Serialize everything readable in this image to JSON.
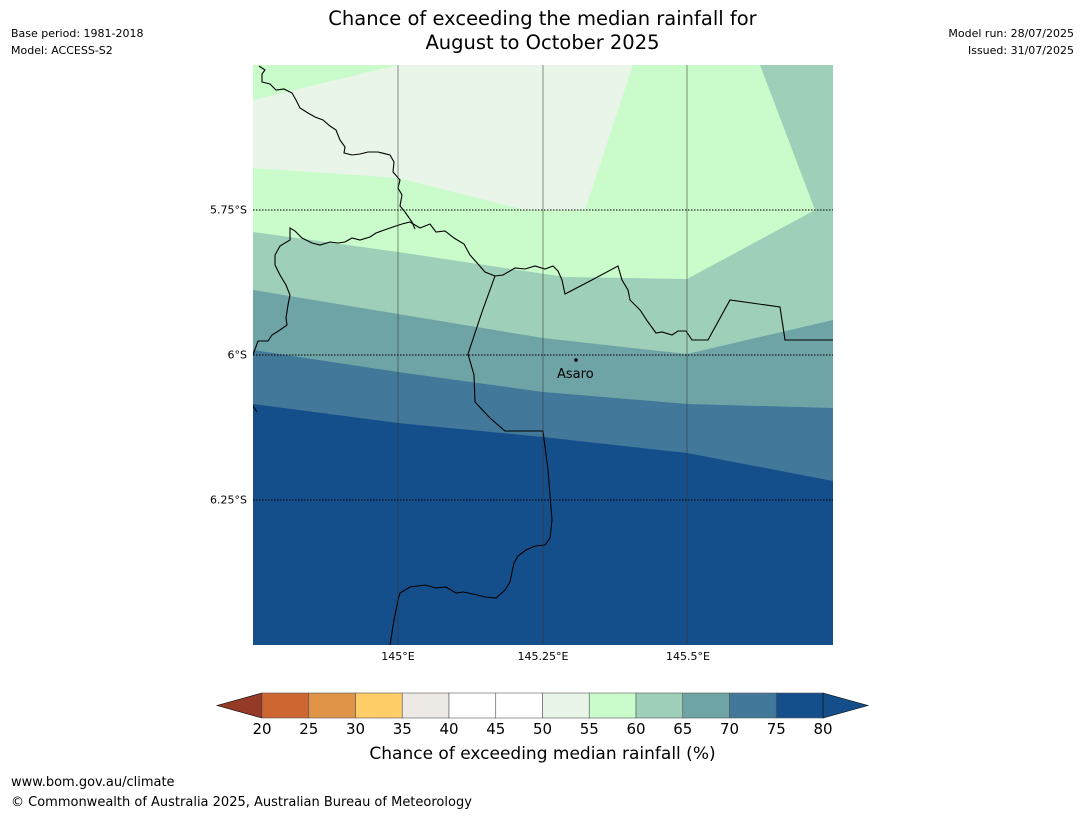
{
  "title": {
    "line1": "Chance of exceeding the median rainfall for",
    "line2": "August to October 2025"
  },
  "meta": {
    "base_period": "Base period: 1981-2018",
    "model": "Model: ACCESS-S2",
    "model_run": "Model run: 28/07/2025",
    "issued": "Issued: 31/07/2025"
  },
  "map": {
    "place_label": "Asaro",
    "lat_labels": [
      "5.75°S",
      "6°S",
      "6.25°S"
    ],
    "lon_labels": [
      "145°E",
      "145.25°E",
      "145.5°E"
    ]
  },
  "colorbar": {
    "title": "Chance of exceeding median rainfall (%)",
    "ticks": [
      "20",
      "25",
      "30",
      "35",
      "40",
      "45",
      "50",
      "55",
      "60",
      "65",
      "70",
      "75",
      "80"
    ],
    "colors": [
      "#b14a25",
      "#cd6631",
      "#e09447",
      "#fecd67",
      "#ede9e5",
      "#ffffff",
      "#ffffff",
      "#e8f5e8",
      "#c9fcca",
      "#9ecfb8",
      "#6fa4a7",
      "#427899",
      "#154f8b"
    ],
    "under_color": "#963a28",
    "over_color": "#154f8b"
  },
  "footer": {
    "url": "www.bom.gov.au/climate",
    "copyright": "© Commonwealth of Australia 2025, Australian Bureau of Meteorology"
  }
}
